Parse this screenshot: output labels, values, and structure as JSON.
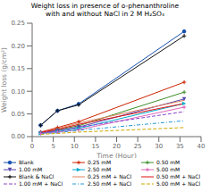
{
  "chart_data": {
    "type": "line",
    "title": "Weight loss in presence of o-phenanthroline",
    "subtitle": "with and without NaCl in 2 M H₂SO₄",
    "x_label": "Time (Hour)",
    "y_label": "Weight loss (g/cm²)",
    "x": [
      2,
      6,
      11,
      36
    ],
    "xlim": [
      0,
      40
    ],
    "xticks": [
      0,
      5,
      10,
      15,
      20,
      25,
      30,
      35,
      40
    ],
    "ylim": [
      0,
      0.25
    ],
    "yticks": [
      {
        "value": 0,
        "label": "0.00"
      },
      0.05,
      {
        "value": 0.1,
        "label": "0.10"
      },
      0.15,
      {
        "value": 0.2,
        "label": "0.20"
      },
      0.25
    ],
    "grid": false,
    "legend": "bottom",
    "series": [
      {
        "name": "Blank",
        "color": "#1650b0",
        "line_style": "solid",
        "marker": "circle",
        "values": [
          0.025,
          0.057,
          0.072,
          0.232
        ]
      },
      {
        "name": "0.25 mM",
        "color": "#cc2200",
        "line_style": "solid",
        "marker": "plus",
        "values": [
          0.01,
          0.02,
          0.033,
          0.12
        ]
      },
      {
        "name": "0.50 mM",
        "color": "#3d8c28",
        "line_style": "solid",
        "marker": "plus",
        "values": [
          0.008,
          0.015,
          0.024,
          0.098
        ]
      },
      {
        "name": "1.00 mM",
        "color": "#5544aa",
        "line_style": "solid",
        "marker": "triangle-down",
        "values": [
          0.008,
          0.013,
          0.021,
          0.083
        ]
      },
      {
        "name": "2.50 mM",
        "color": "#00aacc",
        "line_style": "solid",
        "marker": "triangle-right",
        "values": [
          0.007,
          0.011,
          0.018,
          0.073
        ]
      },
      {
        "name": "5.00 mM",
        "color": "#dd66bb",
        "line_style": "solid",
        "marker": "plus",
        "values": [
          0.007,
          0.01,
          0.015,
          0.065
        ]
      },
      {
        "name": "Blank & NaCl",
        "color": "#111111",
        "line_style": "solid",
        "marker": "plus",
        "values": [
          0.025,
          0.057,
          0.07,
          0.222
        ]
      },
      {
        "name": "0.25 mM + NaCl",
        "color": "#e08060",
        "line_style": "solid",
        "marker": "none",
        "values": [
          0.009,
          0.018,
          0.03,
          0.08
        ]
      },
      {
        "name": "0.50 mM + NaCl",
        "color": "#dd1111",
        "line_style": "solid",
        "marker": "none",
        "values": [
          0.009,
          0.016,
          0.027,
          0.073
        ]
      },
      {
        "name": "1.00 mM + NaCl",
        "color": "#8844cc",
        "line_style": "dashed",
        "marker": "none",
        "values": [
          0.008,
          0.013,
          0.021,
          0.055
        ]
      },
      {
        "name": "2.50 mM + NaCl",
        "color": "#2299dd",
        "line_style": "dashdot",
        "marker": "none",
        "values": [
          0.006,
          0.009,
          0.014,
          0.035
        ]
      },
      {
        "name": "5.00 mM + NaCl",
        "color": "#ccaa00",
        "line_style": "dashed",
        "marker": "none",
        "values": [
          0.005,
          0.007,
          0.01,
          0.02
        ]
      }
    ]
  }
}
